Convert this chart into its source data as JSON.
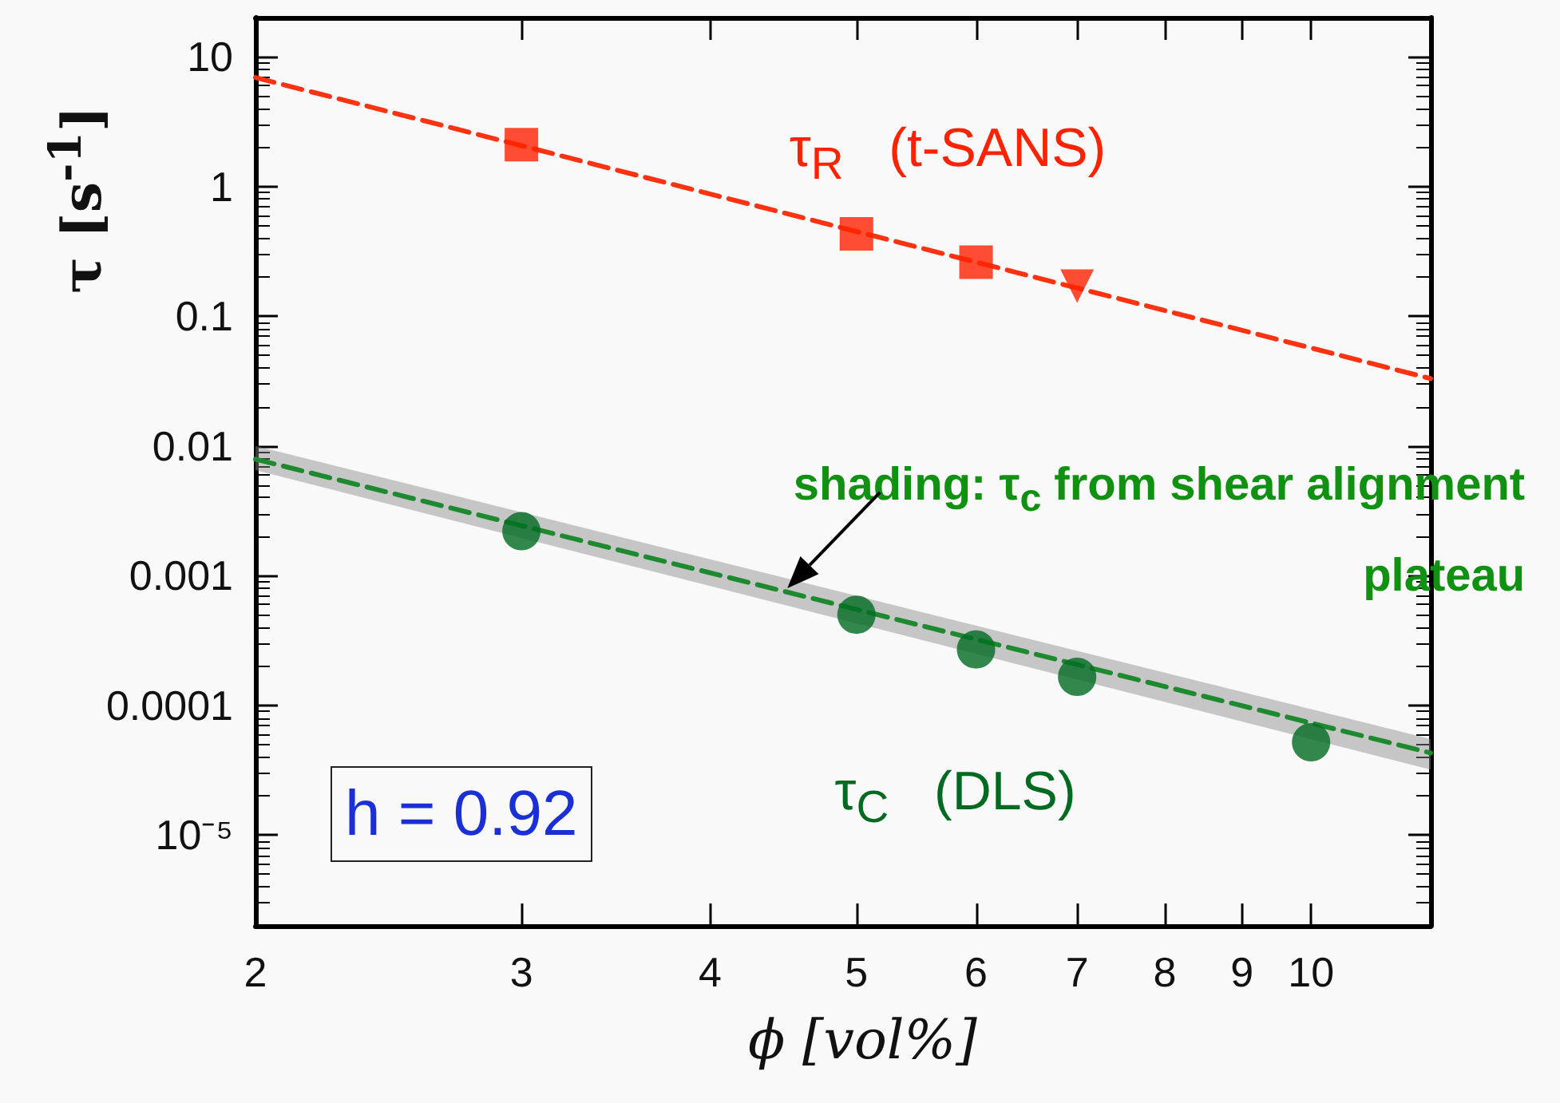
{
  "chart_data": {
    "type": "scatter",
    "xlabel": "ϕ [vol%]",
    "ylabel": "τ [s$^{-1}$]",
    "log": "xy",
    "grid": false,
    "xlim": [
      2,
      12
    ],
    "xticks": [
      2,
      3,
      4,
      5,
      6,
      7,
      8,
      9,
      10
    ],
    "ylim": [
      2e-06,
      20
    ],
    "yticks": [
      {
        "value": 1e-05,
        "label": "10⁻⁵"
      },
      0.0001,
      0.001,
      0.01,
      0.1,
      1,
      10
    ],
    "annotations": [
      "h = 0.92",
      {
        "text": "shading: τ$_{c}$ from shear alignment plateau",
        "x": 4.5,
        "y": 0.0008
      }
    ],
    "series": [
      {
        "type": "line",
        "color": "#ff3311",
        "line_style": "dashed",
        "marker": "none",
        "x": [
          2,
          12
        ],
        "values": [
          6.9,
          0.033
        ]
      },
      {
        "type": "line",
        "color": "#1e8a30",
        "line_style": "dashed",
        "marker": "none",
        "x": [
          2,
          12
        ],
        "values": [
          0.0079,
          4.3e-05
        ],
        "lower": [
          0.0065,
          3.2e-05
        ],
        "upper": [
          0.01,
          5.5e-05
        ]
      },
      {
        "type": "scatter",
        "name": "τ$_{R}$   (t-SANS)",
        "color": "#ff2200",
        "marker": "square",
        "x": [
          3,
          5,
          6
        ],
        "values": [
          2.1,
          0.43,
          0.26
        ]
      },
      {
        "type": "scatter",
        "color": "#ff2200",
        "marker": "triangle",
        "x": [
          7
        ],
        "values": [
          0.17
        ]
      },
      {
        "type": "scatter",
        "name": "τ$_{C}$   (DLS)",
        "color": "#006b20",
        "marker": "circle",
        "x": [
          3,
          5,
          6,
          7,
          10
        ],
        "values": [
          0.0022,
          0.0005,
          0.00027,
          0.000166,
          5.2e-05
        ]
      }
    ]
  }
}
